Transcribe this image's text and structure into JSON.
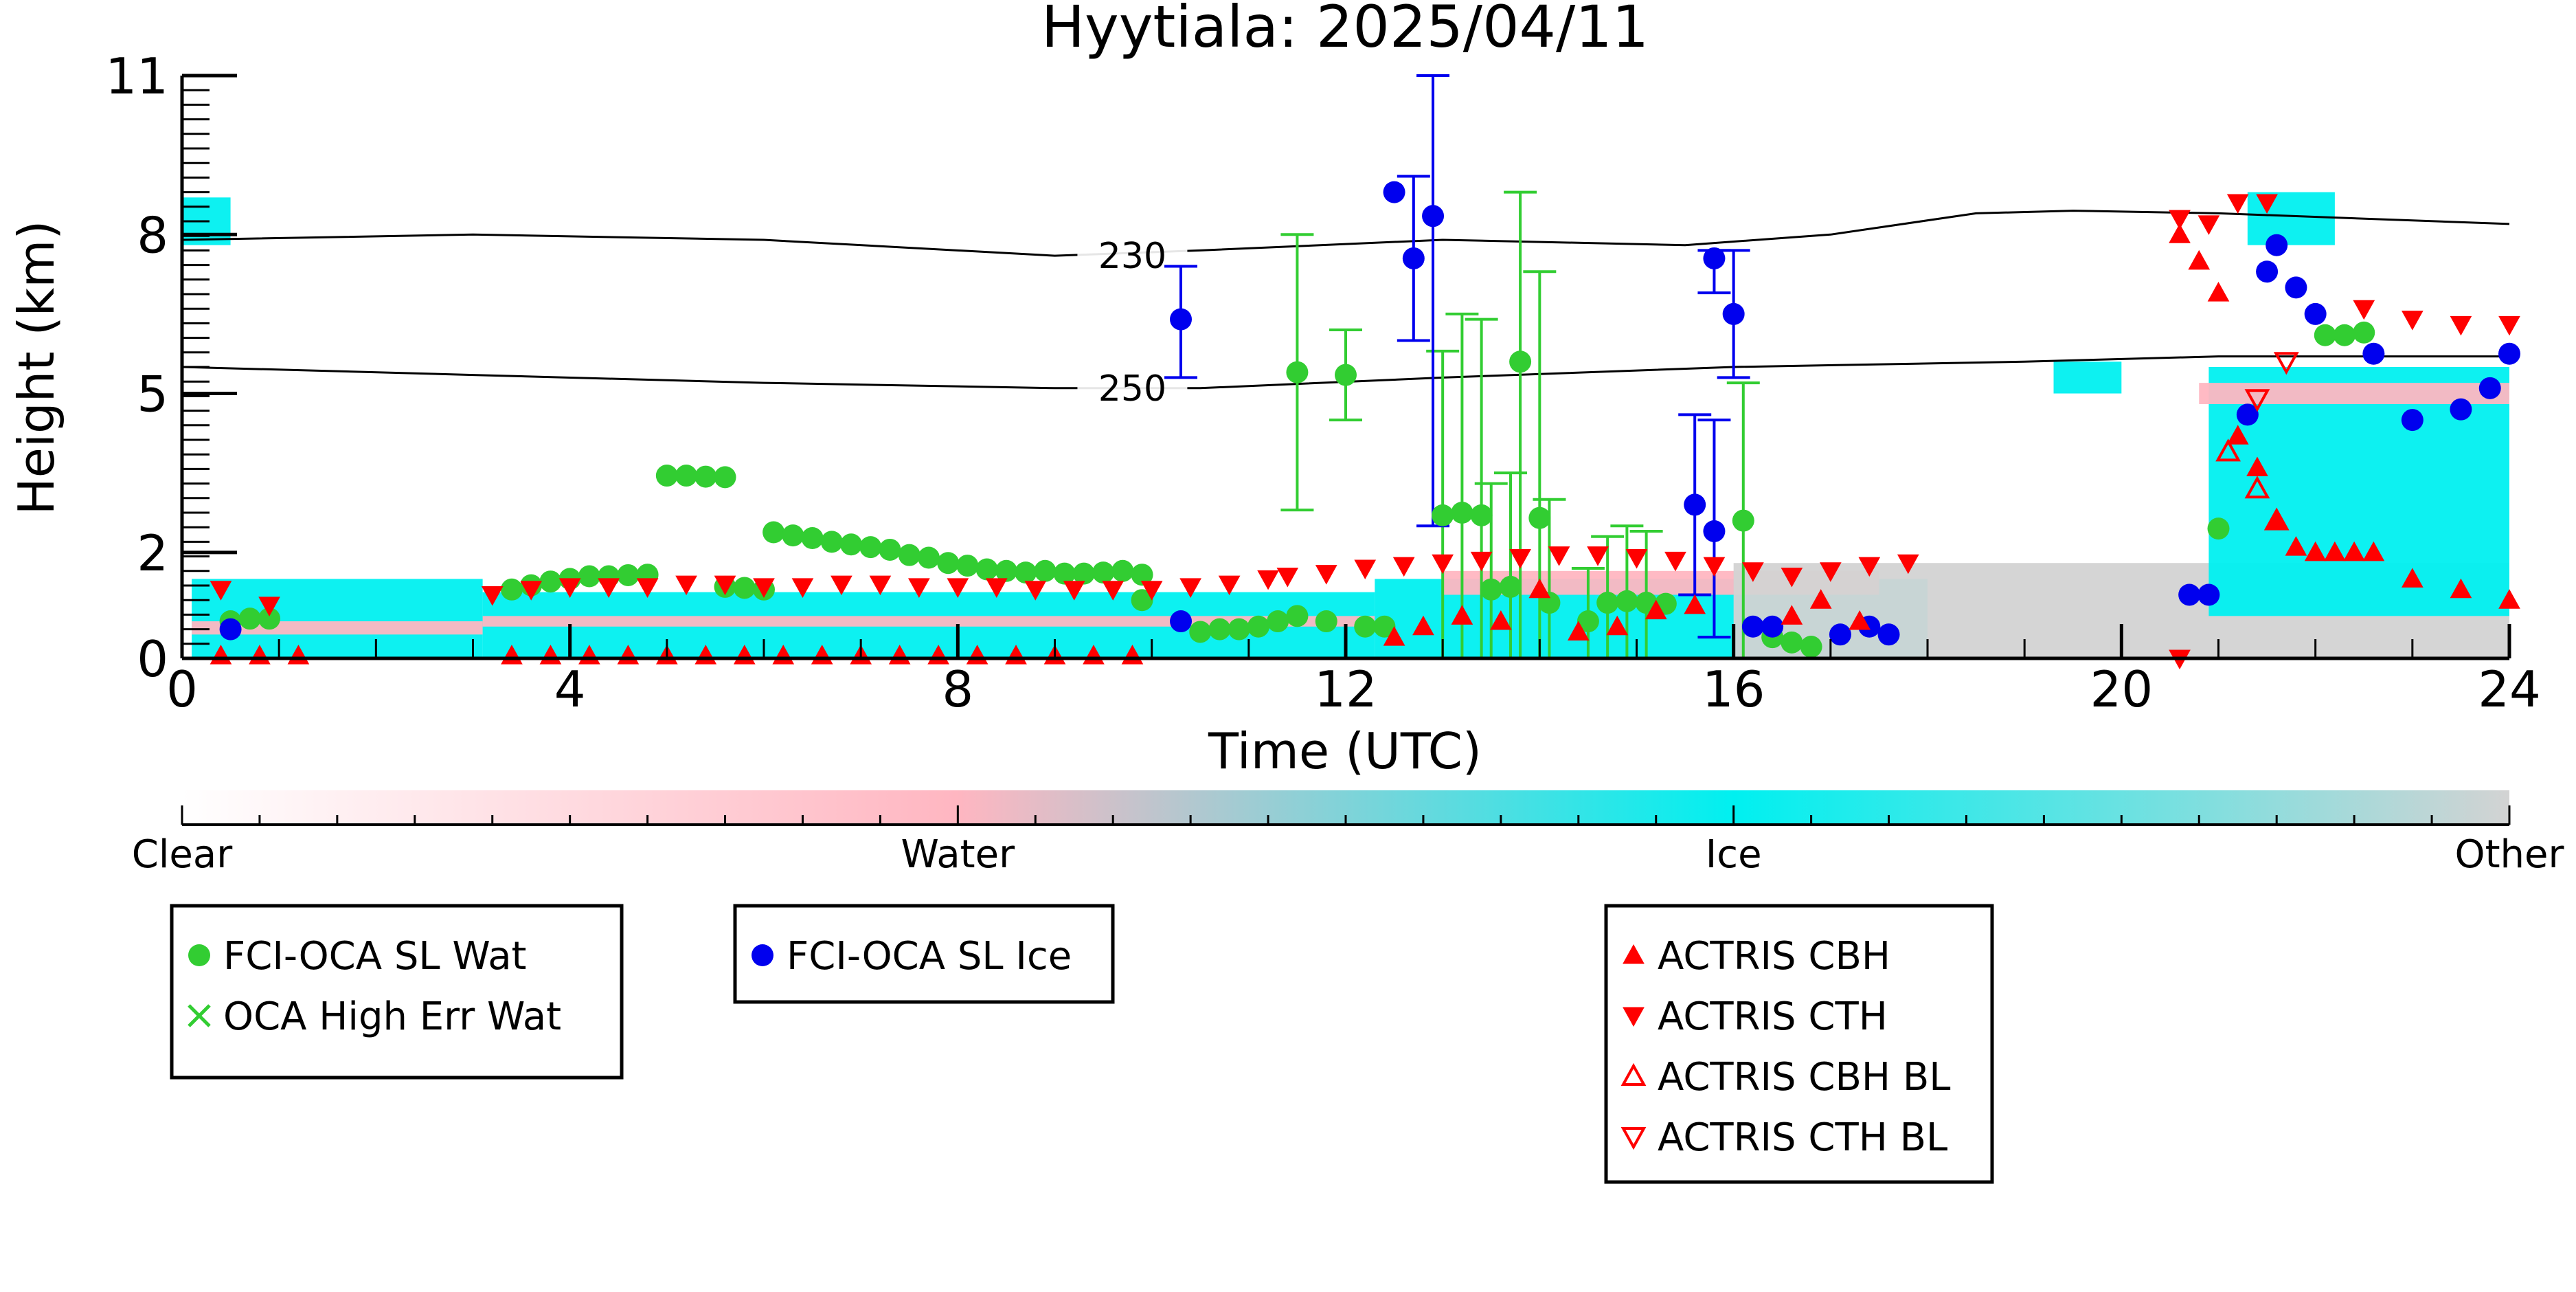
{
  "chart_data": {
    "type": "scatter",
    "title": "Hyytiala: 2025/04/11",
    "xlabel": "Time (UTC)",
    "ylabel": "Height (km)",
    "xlim": [
      0,
      24
    ],
    "ylim": [
      0,
      11
    ],
    "x_ticks": [
      0,
      4,
      8,
      12,
      16,
      20,
      24
    ],
    "y_ticks": [
      0,
      2,
      5,
      8,
      11
    ],
    "colors": {
      "clear": "#ffffff",
      "water": "#ffb6c1",
      "ice": "#00f0f0",
      "other": "#d3d3d3",
      "sl_wat": "#32cd32",
      "sl_ice": "#0000ee",
      "actris": "#ff0000",
      "contour": "#000000"
    },
    "colorbar": {
      "labels": [
        "Clear",
        "Water",
        "Ice",
        "Other"
      ],
      "values": [
        0,
        1,
        2,
        3
      ]
    },
    "contours": [
      {
        "label": "230",
        "points": [
          [
            0,
            7.9
          ],
          [
            3,
            8.0
          ],
          [
            6,
            7.9
          ],
          [
            9,
            7.6
          ],
          [
            10.5,
            7.7
          ],
          [
            13,
            7.9
          ],
          [
            15.5,
            7.8
          ],
          [
            17,
            8.0
          ],
          [
            18.5,
            8.4
          ],
          [
            19.5,
            8.45
          ],
          [
            21,
            8.4
          ],
          [
            24,
            8.2
          ]
        ]
      },
      {
        "label": "250",
        "points": [
          [
            0,
            5.5
          ],
          [
            3,
            5.35
          ],
          [
            6,
            5.2
          ],
          [
            9,
            5.1
          ],
          [
            10.5,
            5.1
          ],
          [
            13,
            5.3
          ],
          [
            16,
            5.5
          ],
          [
            19,
            5.6
          ],
          [
            21,
            5.7
          ],
          [
            24,
            5.7
          ]
        ]
      }
    ],
    "masks": [
      {
        "category": "ice",
        "x": [
          0.1,
          3.1
        ],
        "y": [
          0.0,
          1.5
        ]
      },
      {
        "category": "water",
        "x": [
          0.1,
          3.1
        ],
        "y": [
          0.45,
          0.7
        ]
      },
      {
        "category": "ice",
        "x": [
          3.1,
          12.3
        ],
        "y": [
          0.0,
          1.25
        ]
      },
      {
        "category": "water",
        "x": [
          3.1,
          12.3
        ],
        "y": [
          0.6,
          0.8
        ]
      },
      {
        "category": "ice",
        "x": [
          12.3,
          18.0
        ],
        "y": [
          0.0,
          1.5
        ]
      },
      {
        "category": "water",
        "x": [
          13.0,
          17.5
        ],
        "y": [
          1.2,
          1.65
        ]
      },
      {
        "category": "other",
        "x": [
          16.0,
          24.0
        ],
        "y": [
          0.0,
          1.8
        ]
      },
      {
        "category": "ice",
        "x": [
          20.9,
          24.0
        ],
        "y": [
          0.8,
          5.5
        ]
      },
      {
        "category": "water",
        "x": [
          20.8,
          24.0
        ],
        "y": [
          4.8,
          5.2
        ]
      },
      {
        "category": "ice",
        "x": [
          21.3,
          22.2
        ],
        "y": [
          7.8,
          8.8
        ]
      },
      {
        "category": "ice",
        "x": [
          19.3,
          20.0
        ],
        "y": [
          5.0,
          5.6
        ]
      },
      {
        "category": "ice",
        "x": [
          0.0,
          0.5
        ],
        "y": [
          7.8,
          8.7
        ]
      }
    ],
    "series": [
      {
        "name": "FCI-OCA SL Wat",
        "marker": "circle",
        "points": [
          [
            0.5,
            0.7
          ],
          [
            0.7,
            0.75
          ],
          [
            0.9,
            0.75
          ],
          [
            3.4,
            1.3
          ],
          [
            3.6,
            1.38
          ],
          [
            3.8,
            1.45
          ],
          [
            4.0,
            1.5
          ],
          [
            4.2,
            1.55
          ],
          [
            4.4,
            1.55
          ],
          [
            4.6,
            1.57
          ],
          [
            4.8,
            1.58
          ],
          [
            5.0,
            3.45
          ],
          [
            5.2,
            3.45
          ],
          [
            5.4,
            3.43
          ],
          [
            5.6,
            3.42
          ],
          [
            5.6,
            1.35
          ],
          [
            5.8,
            1.33
          ],
          [
            6.0,
            1.3
          ],
          [
            6.1,
            2.38
          ],
          [
            6.3,
            2.32
          ],
          [
            6.5,
            2.27
          ],
          [
            6.7,
            2.2
          ],
          [
            6.9,
            2.15
          ],
          [
            7.1,
            2.1
          ],
          [
            7.3,
            2.05
          ],
          [
            7.5,
            1.95
          ],
          [
            7.7,
            1.9
          ],
          [
            7.9,
            1.8
          ],
          [
            8.1,
            1.75
          ],
          [
            8.3,
            1.68
          ],
          [
            8.5,
            1.65
          ],
          [
            8.7,
            1.62
          ],
          [
            8.9,
            1.65
          ],
          [
            9.1,
            1.6
          ],
          [
            9.3,
            1.6
          ],
          [
            9.5,
            1.62
          ],
          [
            9.7,
            1.65
          ],
          [
            9.9,
            1.58
          ],
          [
            9.9,
            1.1
          ],
          [
            10.5,
            0.5
          ],
          [
            10.7,
            0.55
          ],
          [
            10.9,
            0.55
          ],
          [
            11.1,
            0.6
          ],
          [
            11.3,
            0.7
          ],
          [
            11.5,
            0.8
          ],
          [
            11.5,
            5.4
          ],
          [
            11.8,
            0.7
          ],
          [
            12.0,
            5.35
          ],
          [
            12.2,
            0.6
          ],
          [
            12.4,
            0.6
          ],
          [
            13.0,
            2.7
          ],
          [
            13.2,
            2.75
          ],
          [
            13.4,
            2.7
          ],
          [
            13.5,
            1.3
          ],
          [
            13.7,
            1.35
          ],
          [
            13.8,
            5.6
          ],
          [
            14.0,
            2.65
          ],
          [
            14.1,
            1.05
          ],
          [
            14.5,
            0.7
          ],
          [
            14.7,
            1.05
          ],
          [
            14.9,
            1.08
          ],
          [
            15.1,
            1.05
          ],
          [
            15.3,
            1.03
          ],
          [
            16.1,
            2.6
          ],
          [
            16.4,
            0.4
          ],
          [
            16.6,
            0.3
          ],
          [
            16.8,
            0.22
          ],
          [
            21.0,
            2.45
          ],
          [
            22.1,
            6.1
          ],
          [
            22.3,
            6.1
          ],
          [
            22.5,
            6.15
          ]
        ],
        "errors": [
          [
            11.5,
            2.8,
            8.0
          ],
          [
            12.0,
            4.5,
            6.2
          ],
          [
            13.0,
            0.0,
            5.8
          ],
          [
            13.2,
            0.0,
            6.5
          ],
          [
            13.4,
            0.0,
            6.4
          ],
          [
            13.5,
            0.0,
            3.3
          ],
          [
            13.7,
            0.0,
            3.5
          ],
          [
            13.8,
            0.0,
            8.8
          ],
          [
            14.0,
            0.0,
            7.3
          ],
          [
            14.1,
            0.0,
            3.0
          ],
          [
            14.5,
            0.0,
            1.7
          ],
          [
            14.7,
            0.0,
            2.3
          ],
          [
            14.9,
            0.0,
            2.5
          ],
          [
            15.1,
            0.0,
            2.4
          ],
          [
            16.1,
            0.0,
            5.2
          ]
        ]
      },
      {
        "name": "FCI-OCA SL Ice",
        "marker": "circle",
        "points": [
          [
            0.5,
            0.55
          ],
          [
            10.3,
            0.7
          ],
          [
            10.3,
            6.4
          ],
          [
            12.5,
            8.8
          ],
          [
            12.7,
            7.55
          ],
          [
            12.9,
            8.35
          ],
          [
            15.6,
            2.9
          ],
          [
            15.8,
            2.4
          ],
          [
            15.8,
            7.55
          ],
          [
            16.0,
            6.5
          ],
          [
            16.2,
            0.6
          ],
          [
            16.4,
            0.6
          ],
          [
            17.1,
            0.45
          ],
          [
            17.4,
            0.6
          ],
          [
            17.6,
            0.45
          ],
          [
            20.7,
            1.2
          ],
          [
            20.9,
            1.2
          ],
          [
            21.3,
            4.6
          ],
          [
            21.5,
            7.3
          ],
          [
            21.6,
            7.8
          ],
          [
            21.8,
            7.0
          ],
          [
            22.0,
            6.5
          ],
          [
            22.6,
            5.75
          ],
          [
            23.0,
            4.5
          ],
          [
            23.5,
            4.7
          ],
          [
            23.8,
            5.1
          ],
          [
            24.0,
            5.75
          ]
        ],
        "errors": [
          [
            10.3,
            5.3,
            7.4
          ],
          [
            12.7,
            6.0,
            9.1
          ],
          [
            12.9,
            2.5,
            11.0
          ],
          [
            15.6,
            1.2,
            4.6
          ],
          [
            15.8,
            0.4,
            4.5
          ],
          [
            15.8,
            6.9,
            7.7
          ],
          [
            16.0,
            5.3,
            7.7
          ]
        ]
      },
      {
        "name": "OCA High Err Wat",
        "marker": "x",
        "points": []
      },
      {
        "name": "ACTRIS CBH",
        "marker": "triangle-up",
        "points": [
          [
            0.4,
            0.05
          ],
          [
            0.8,
            0.05
          ],
          [
            1.2,
            0.05
          ],
          [
            3.4,
            0.05
          ],
          [
            3.8,
            0.05
          ],
          [
            4.2,
            0.05
          ],
          [
            4.6,
            0.05
          ],
          [
            5.0,
            0.05
          ],
          [
            5.4,
            0.05
          ],
          [
            5.8,
            0.05
          ],
          [
            6.2,
            0.05
          ],
          [
            6.6,
            0.05
          ],
          [
            7.0,
            0.05
          ],
          [
            7.4,
            0.05
          ],
          [
            7.8,
            0.05
          ],
          [
            8.2,
            0.05
          ],
          [
            8.6,
            0.05
          ],
          [
            9.0,
            0.05
          ],
          [
            9.4,
            0.05
          ],
          [
            9.8,
            0.05
          ],
          [
            12.5,
            0.4
          ],
          [
            12.8,
            0.6
          ],
          [
            13.2,
            0.8
          ],
          [
            13.6,
            0.7
          ],
          [
            14.0,
            1.3
          ],
          [
            14.4,
            0.5
          ],
          [
            14.8,
            0.6
          ],
          [
            15.2,
            0.9
          ],
          [
            15.6,
            1.0
          ],
          [
            16.6,
            0.8
          ],
          [
            16.9,
            1.1
          ],
          [
            17.3,
            0.7
          ],
          [
            20.6,
            8.0
          ],
          [
            20.8,
            7.5
          ],
          [
            21.0,
            6.9
          ],
          [
            21.2,
            4.2
          ],
          [
            21.4,
            3.6
          ],
          [
            21.6,
            2.6
          ],
          [
            21.8,
            2.1
          ],
          [
            22.0,
            2.0
          ],
          [
            22.2,
            2.0
          ],
          [
            22.4,
            2.0
          ],
          [
            22.6,
            2.0
          ],
          [
            23.0,
            1.5
          ],
          [
            23.5,
            1.3
          ],
          [
            24.0,
            1.1
          ]
        ]
      },
      {
        "name": "ACTRIS CTH",
        "marker": "triangle-down",
        "points": [
          [
            0.4,
            1.3
          ],
          [
            0.9,
            1.0
          ],
          [
            3.2,
            1.2
          ],
          [
            3.6,
            1.3
          ],
          [
            4.0,
            1.35
          ],
          [
            4.4,
            1.35
          ],
          [
            4.8,
            1.35
          ],
          [
            5.2,
            1.4
          ],
          [
            5.6,
            1.4
          ],
          [
            6.0,
            1.35
          ],
          [
            6.4,
            1.35
          ],
          [
            6.8,
            1.4
          ],
          [
            7.2,
            1.4
          ],
          [
            7.6,
            1.35
          ],
          [
            8.0,
            1.35
          ],
          [
            8.4,
            1.35
          ],
          [
            8.8,
            1.3
          ],
          [
            9.2,
            1.3
          ],
          [
            9.6,
            1.3
          ],
          [
            10.0,
            1.3
          ],
          [
            10.4,
            1.35
          ],
          [
            10.8,
            1.4
          ],
          [
            11.2,
            1.5
          ],
          [
            11.4,
            1.55
          ],
          [
            11.8,
            1.6
          ],
          [
            12.2,
            1.7
          ],
          [
            12.6,
            1.75
          ],
          [
            13.0,
            1.8
          ],
          [
            13.4,
            1.85
          ],
          [
            13.8,
            1.9
          ],
          [
            14.2,
            1.95
          ],
          [
            14.6,
            1.95
          ],
          [
            15.0,
            1.9
          ],
          [
            15.4,
            1.85
          ],
          [
            15.8,
            1.75
          ],
          [
            16.2,
            1.65
          ],
          [
            16.6,
            1.55
          ],
          [
            17.0,
            1.65
          ],
          [
            17.4,
            1.75
          ],
          [
            17.8,
            1.8
          ],
          [
            20.6,
            8.3
          ],
          [
            20.9,
            8.2
          ],
          [
            21.2,
            8.6
          ],
          [
            21.5,
            8.6
          ],
          [
            22.5,
            6.6
          ],
          [
            23.0,
            6.4
          ],
          [
            23.5,
            6.3
          ],
          [
            24.0,
            6.3
          ],
          [
            20.6,
            0.0
          ]
        ]
      },
      {
        "name": "ACTRIS CBH BL",
        "marker": "triangle-up-open",
        "points": [
          [
            21.1,
            3.9
          ],
          [
            21.4,
            3.2
          ],
          [
            21.6,
            2.6
          ]
        ]
      },
      {
        "name": "ACTRIS CTH BL",
        "marker": "triangle-down-open",
        "points": [
          [
            21.4,
            4.9
          ],
          [
            21.7,
            5.6
          ]
        ]
      }
    ]
  },
  "legends": [
    {
      "entries": [
        "FCI-OCA SL Wat",
        "OCA High Err Wat"
      ]
    },
    {
      "entries": [
        "FCI-OCA SL Ice"
      ]
    },
    {
      "entries": [
        "ACTRIS CBH",
        "ACTRIS CTH",
        "ACTRIS CBH BL",
        "ACTRIS CTH BL"
      ]
    }
  ]
}
